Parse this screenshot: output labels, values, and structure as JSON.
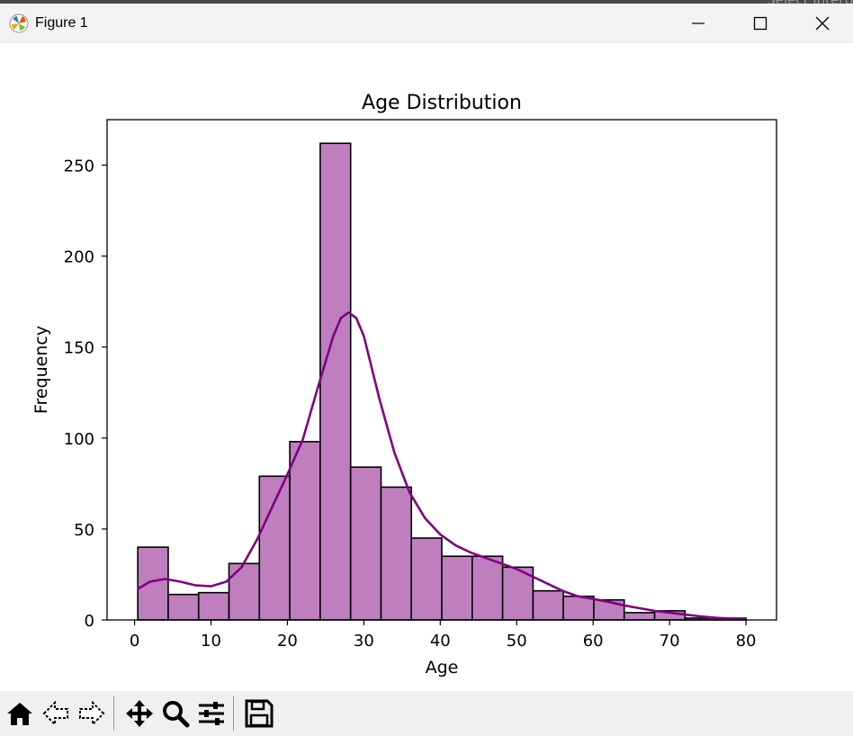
{
  "window": {
    "title": "Figure 1",
    "background_hint": "Select Interp"
  },
  "toolbar": {
    "buttons": [
      {
        "icon": "home-icon"
      },
      {
        "icon": "back-arrow-icon"
      },
      {
        "icon": "forward-arrow-icon"
      },
      {
        "icon": "pan-move-icon"
      },
      {
        "icon": "zoom-magnifier-icon"
      },
      {
        "icon": "configure-subplots-icon"
      },
      {
        "icon": "save-floppy-icon"
      }
    ]
  },
  "chart_data": {
    "type": "bar",
    "title": "Age Distribution",
    "xlabel": "Age",
    "ylabel": "Frequency",
    "xlim": [
      -3.6,
      84.0
    ],
    "ylim": [
      0,
      275
    ],
    "xticks": [
      0,
      10,
      20,
      30,
      40,
      50,
      60,
      70,
      80
    ],
    "yticks": [
      0,
      50,
      100,
      150,
      200,
      250
    ],
    "grid": false,
    "bar_color": "#bf7fbf",
    "edge_color": "#000000",
    "kde_color": "#800080",
    "bins": [
      {
        "x0": 0.42,
        "x1": 4.4,
        "count": 40
      },
      {
        "x0": 4.4,
        "x1": 8.38,
        "count": 14
      },
      {
        "x0": 8.38,
        "x1": 12.35,
        "count": 15
      },
      {
        "x0": 12.35,
        "x1": 16.33,
        "count": 31
      },
      {
        "x0": 16.33,
        "x1": 20.31,
        "count": 79
      },
      {
        "x0": 20.31,
        "x1": 24.29,
        "count": 98
      },
      {
        "x0": 24.29,
        "x1": 28.27,
        "count": 262
      },
      {
        "x0": 28.27,
        "x1": 32.25,
        "count": 84
      },
      {
        "x0": 32.25,
        "x1": 36.22,
        "count": 73
      },
      {
        "x0": 36.22,
        "x1": 40.2,
        "count": 45
      },
      {
        "x0": 40.2,
        "x1": 44.18,
        "count": 35
      },
      {
        "x0": 44.18,
        "x1": 48.16,
        "count": 35
      },
      {
        "x0": 48.16,
        "x1": 52.14,
        "count": 29
      },
      {
        "x0": 52.14,
        "x1": 56.11,
        "count": 16
      },
      {
        "x0": 56.11,
        "x1": 60.09,
        "count": 13
      },
      {
        "x0": 60.09,
        "x1": 64.07,
        "count": 11
      },
      {
        "x0": 64.07,
        "x1": 68.05,
        "count": 4
      },
      {
        "x0": 68.05,
        "x1": 72.03,
        "count": 5
      },
      {
        "x0": 72.03,
        "x1": 76.01,
        "count": 1
      },
      {
        "x0": 76.01,
        "x1": 80.0,
        "count": 1
      }
    ],
    "kde": {
      "x": [
        0.4,
        2,
        4,
        6,
        8,
        10,
        12,
        14,
        16,
        18,
        20,
        22,
        24,
        26,
        27,
        28,
        29,
        30,
        32,
        34,
        36,
        38,
        40,
        42,
        44,
        46,
        48,
        50,
        52,
        54,
        56,
        58,
        60,
        62,
        64,
        66,
        68,
        70,
        72,
        74,
        76,
        78,
        80
      ],
      "y": [
        17,
        21,
        22.5,
        21,
        19,
        18.5,
        21,
        29,
        44,
        62,
        80,
        99,
        128,
        156,
        166,
        169,
        166,
        156,
        122,
        92,
        70,
        56,
        47,
        41,
        37,
        34,
        31,
        28,
        24,
        20,
        16,
        13,
        11.5,
        10,
        8,
        6.5,
        5,
        4,
        3,
        2,
        1.2,
        0.7,
        0.4
      ]
    }
  }
}
